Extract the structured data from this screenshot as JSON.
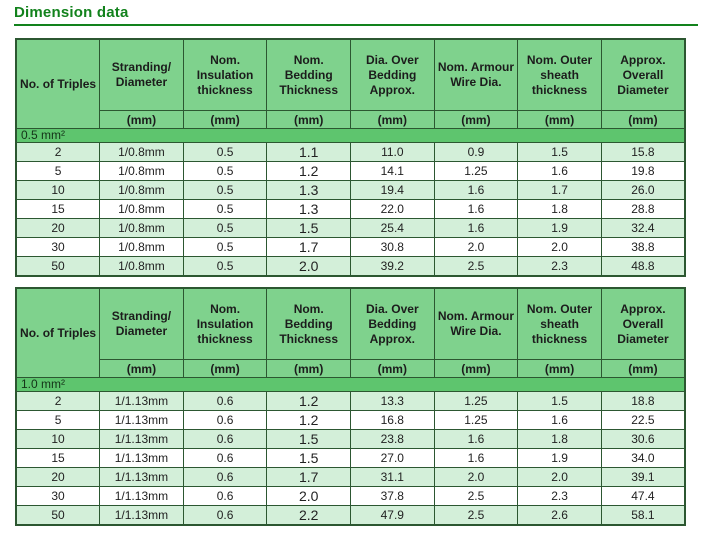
{
  "page": {
    "title": "Dimension data"
  },
  "headers": {
    "columns": [
      "No. of Triples",
      "Stranding/ Diameter",
      "Nom. Insulation thickness",
      "Nom. Bedding Thickness",
      "Dia. Over Bedding Approx.",
      "Nom. Armour Wire Dia.",
      "Nom. Outer sheath thickness",
      "Approx. Overall Diameter"
    ],
    "unit": "(mm)"
  },
  "tables": [
    {
      "size_label": "0.5 mm²",
      "rows": [
        [
          "2",
          "1/0.8mm",
          "0.5",
          "1.1",
          "11.0",
          "0.9",
          "1.5",
          "15.8"
        ],
        [
          "5",
          "1/0.8mm",
          "0.5",
          "1.2",
          "14.1",
          "1.25",
          "1.6",
          "19.8"
        ],
        [
          "10",
          "1/0.8mm",
          "0.5",
          "1.3",
          "19.4",
          "1.6",
          "1.7",
          "26.0"
        ],
        [
          "15",
          "1/0.8mm",
          "0.5",
          "1.3",
          "22.0",
          "1.6",
          "1.8",
          "28.8"
        ],
        [
          "20",
          "1/0.8mm",
          "0.5",
          "1.5",
          "25.4",
          "1.6",
          "1.9",
          "32.4"
        ],
        [
          "30",
          "1/0.8mm",
          "0.5",
          "1.7",
          "30.8",
          "2.0",
          "2.0",
          "38.8"
        ],
        [
          "50",
          "1/0.8mm",
          "0.5",
          "2.0",
          "39.2",
          "2.5",
          "2.3",
          "48.8"
        ]
      ]
    },
    {
      "size_label": "1.0 mm²",
      "rows": [
        [
          "2",
          "1/1.13mm",
          "0.6",
          "1.2",
          "13.3",
          "1.25",
          "1.5",
          "18.8"
        ],
        [
          "5",
          "1/1.13mm",
          "0.6",
          "1.2",
          "16.8",
          "1.25",
          "1.6",
          "22.5"
        ],
        [
          "10",
          "1/1.13mm",
          "0.6",
          "1.5",
          "23.8",
          "1.6",
          "1.8",
          "30.6"
        ],
        [
          "15",
          "1/1.13mm",
          "0.6",
          "1.5",
          "27.0",
          "1.6",
          "1.9",
          "34.0"
        ],
        [
          "20",
          "1/1.13mm",
          "0.6",
          "1.7",
          "31.1",
          "2.0",
          "2.0",
          "39.1"
        ],
        [
          "30",
          "1/1.13mm",
          "0.6",
          "2.0",
          "37.8",
          "2.5",
          "2.3",
          "47.4"
        ],
        [
          "50",
          "1/1.13mm",
          "0.6",
          "2.2",
          "47.9",
          "2.5",
          "2.6",
          "58.1"
        ]
      ]
    }
  ],
  "colors": {
    "title_green": "#12821c",
    "header_green": "#7fd28d",
    "band_green": "#5ec56e",
    "row_light_green": "#d3efd9",
    "border_green": "#2c5731"
  }
}
